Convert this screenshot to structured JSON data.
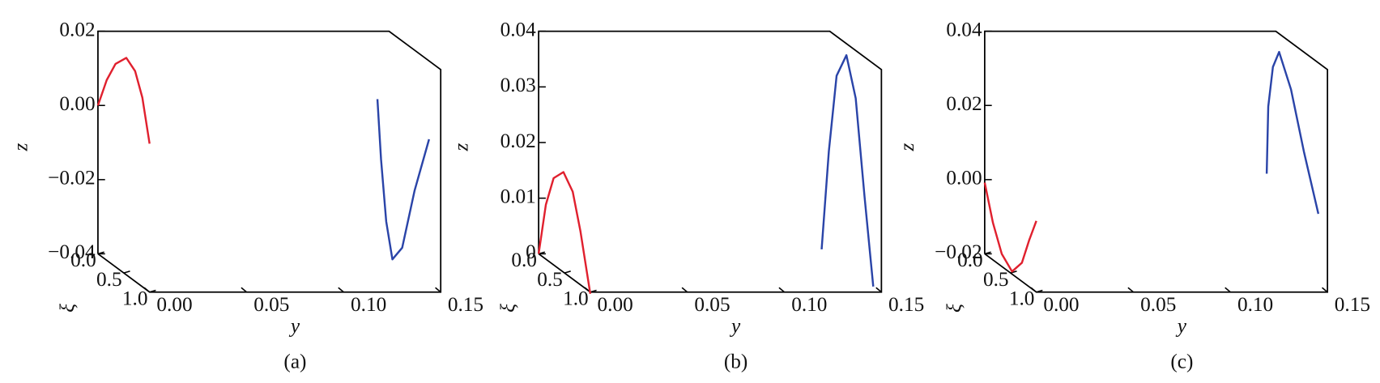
{
  "chart_data": [
    {
      "type": "line3d",
      "caption": "(a)",
      "ylabel": "y",
      "zlabel": "z",
      "xilabel": "ξ",
      "ylim": [
        0,
        0.15
      ],
      "yticks": [
        {
          "value": 0,
          "label": "0.00"
        },
        0.05,
        {
          "value": 0.1,
          "label": "0.10"
        },
        0.15
      ],
      "zlim": [
        -0.04,
        0.02
      ],
      "zticks": [
        {
          "value": -0.04,
          "label": "−0.04"
        },
        {
          "value": -0.02,
          "label": "−0.02"
        },
        {
          "value": 0,
          "label": "0.00"
        },
        0.02
      ],
      "xilim": [
        0,
        1
      ],
      "xiticks": [
        {
          "value": 0,
          "label": "0.0"
        },
        0.5,
        {
          "value": 1,
          "label": "1.0"
        }
      ],
      "series": [
        {
          "color": "#e0202e",
          "y": [
            0,
            0,
            0,
            0,
            0,
            0,
            0
          ],
          "xi": [
            0,
            0.17,
            0.34,
            0.55,
            0.72,
            0.86,
            1
          ],
          "values": [
            0,
            0.0086,
            0.0147,
            0.0185,
            0.0167,
            0.011,
            0
          ]
        },
        {
          "color": "#2a44a8",
          "y": [
            0.144,
            0.144,
            0.144,
            0.144,
            0.144,
            0.144,
            0.144
          ],
          "xi": [
            0,
            0.07,
            0.17,
            0.29,
            0.48,
            0.72,
            1
          ],
          "values": [
            0.0017,
            -0.0138,
            -0.0295,
            -0.0385,
            -0.0334,
            -0.0155,
            0.0012
          ]
        }
      ]
    },
    {
      "type": "line3d",
      "caption": "(b)",
      "ylabel": "y",
      "zlabel": "z",
      "xilabel": "ξ",
      "ylim": [
        0,
        0.15
      ],
      "yticks": [
        {
          "value": 0,
          "label": "0.00"
        },
        0.05,
        {
          "value": 0.1,
          "label": "0.10"
        },
        0.15
      ],
      "zlim": [
        0,
        0.04
      ],
      "zticks": [
        0,
        0.01,
        0.02,
        0.03,
        0.04
      ],
      "xilim": [
        0,
        1
      ],
      "xiticks": [
        {
          "value": 0,
          "label": "0.0"
        },
        0.5,
        {
          "value": 1,
          "label": "1.0"
        }
      ],
      "series": [
        {
          "color": "#e0202e",
          "y": [
            0,
            0,
            0,
            0,
            0,
            0,
            0
          ],
          "xi": [
            0,
            0.14,
            0.29,
            0.48,
            0.66,
            0.81,
            1
          ],
          "values": [
            0,
            0.0098,
            0.0156,
            0.018,
            0.0157,
            0.0096,
            -0.0003
          ]
        },
        {
          "color": "#2a44a8",
          "y": [
            0.1458,
            0.1458,
            0.1458,
            0.1458,
            0.1458,
            0.1458,
            0.1458
          ],
          "xi": [
            0,
            0.14,
            0.29,
            0.48,
            0.66,
            0.83,
            1
          ],
          "values": [
            0.0008,
            0.0194,
            0.034,
            0.039,
            0.0325,
            0.0161,
            0.001
          ]
        }
      ]
    },
    {
      "type": "line3d",
      "caption": "(c)",
      "ylabel": "y",
      "zlabel": "z",
      "xilabel": "ξ",
      "ylim": [
        0,
        0.15
      ],
      "yticks": [
        {
          "value": 0,
          "label": "0.00"
        },
        0.05,
        {
          "value": 0.1,
          "label": "0.10"
        },
        0.15
      ],
      "zlim": [
        -0.02,
        0.04
      ],
      "zticks": [
        {
          "value": -0.02,
          "label": "−0.02"
        },
        {
          "value": 0,
          "label": "0.00"
        },
        0.02,
        0.04
      ],
      "xilim": [
        0,
        1
      ],
      "xiticks": [
        {
          "value": 0,
          "label": "0.0"
        },
        0.5,
        {
          "value": 1,
          "label": "1.0"
        }
      ],
      "series": [
        {
          "color": "#e0202e",
          "y": [
            0,
            0,
            0,
            0,
            0,
            0,
            0
          ],
          "xi": [
            0,
            0.16,
            0.33,
            0.53,
            0.72,
            0.86,
            1
          ],
          "values": [
            -0.0008,
            -0.01,
            -0.0166,
            -0.0193,
            -0.015,
            -0.0075,
            -0.0008
          ]
        },
        {
          "color": "#2a44a8",
          "y": [
            0.1453,
            0.1453,
            0.1453,
            0.1453,
            0.1453,
            0.1453,
            0.1453
          ],
          "xi": [
            0,
            0.03,
            0.12,
            0.24,
            0.47,
            0.72,
            1
          ],
          "values": [
            0.0016,
            0.02,
            0.0316,
            0.0369,
            0.0292,
            0.015,
            0.0011
          ]
        }
      ]
    }
  ]
}
